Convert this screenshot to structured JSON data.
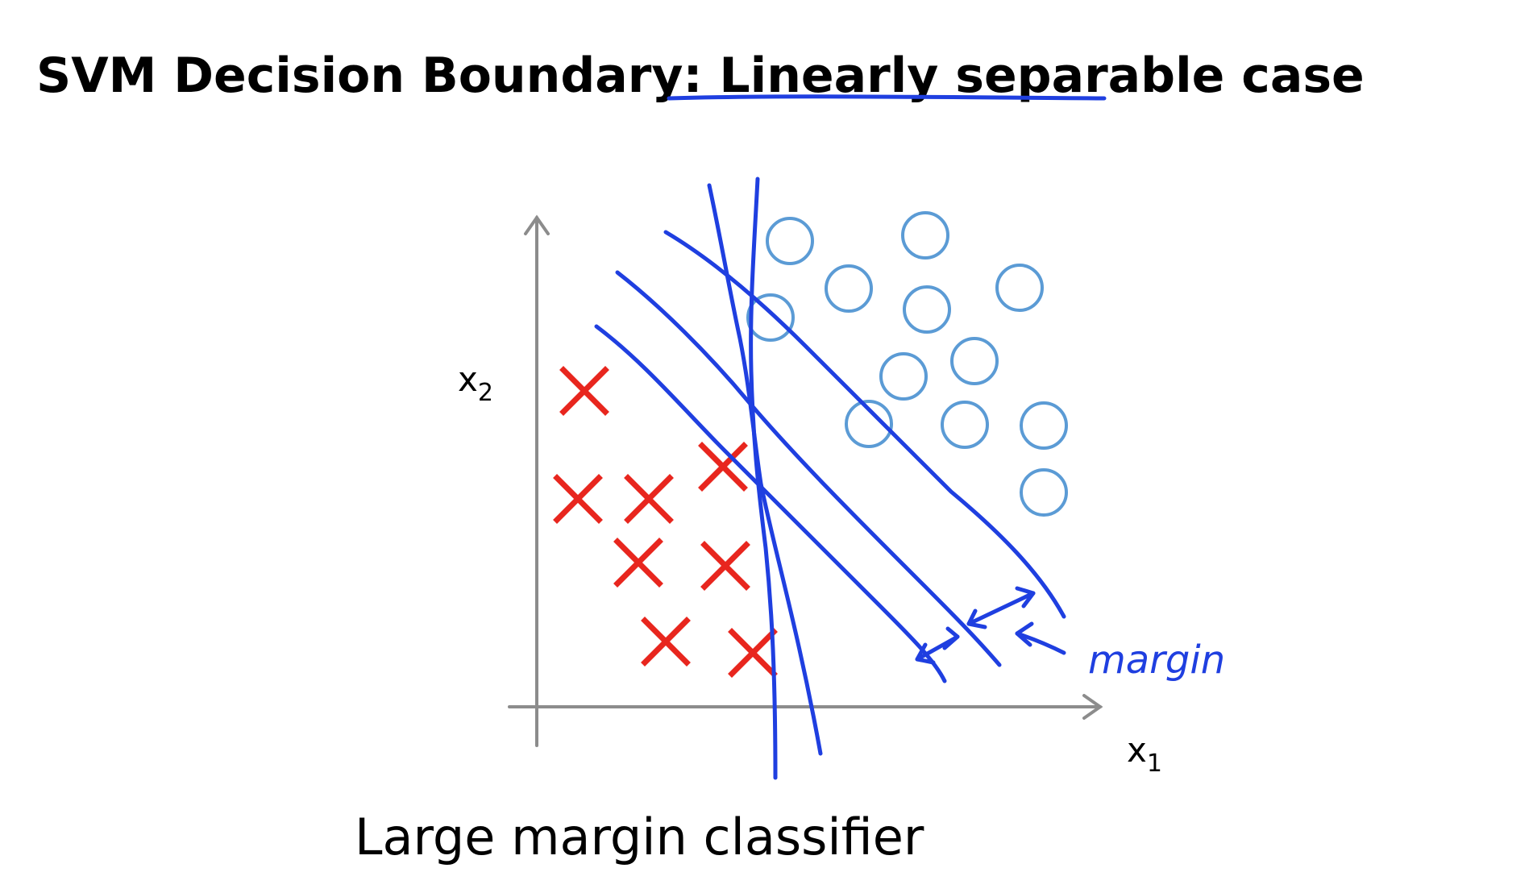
{
  "slide": {
    "title_part1": "SVM Decision Boundary: ",
    "title_part2": "Linearly separable",
    "title_part3": " case",
    "caption": "Large margin classifier"
  },
  "axes": {
    "x_label": "x",
    "x_sub": "1",
    "y_label": "x",
    "y_sub": "2"
  },
  "annotation": {
    "margin_label": "margin"
  },
  "colors": {
    "positive": "#5b9bd5",
    "negative": "#e8261e",
    "ink": "#1f3fe0",
    "axis": "#8c8c8c"
  },
  "markers": {
    "positive": "circle",
    "negative": "cross"
  }
}
